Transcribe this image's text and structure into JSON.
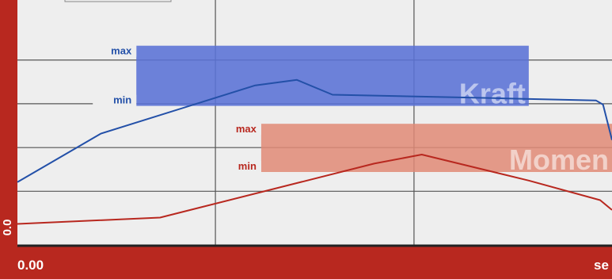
{
  "chart_data": {
    "type": "line",
    "x_axis": {
      "start_label": "0.00",
      "unit_label": "se"
    },
    "y_axis": {
      "visible_label": "0.0"
    },
    "grid": true,
    "series": [
      {
        "name": "Kraft",
        "color": "#2350a8",
        "x": [
          0,
          14,
          40,
          47,
          53,
          80,
          97.3,
          98.5,
          100
        ],
        "y": [
          5.9,
          37,
          68.1,
          71.6,
          62.1,
          59.9,
          58.4,
          55.7,
          33
        ]
      },
      {
        "name": "Moment",
        "color": "#b8281f",
        "x": [
          0,
          24,
          60,
          68,
          86,
          98,
          100
        ],
        "y": [
          -21,
          -16.9,
          17.8,
          23.6,
          6.9,
          -5.7,
          -12
        ]
      }
    ],
    "tolerance_bands": [
      {
        "series": "Kraft",
        "color": "#5a72d6",
        "x_range": [
          20,
          86
        ],
        "y_range": [
          54.9,
          93.6
        ],
        "max_label": "max",
        "min_label": "min",
        "band_label": "Kraft"
      },
      {
        "series": "Moment",
        "color": "#e08a76",
        "x_range": [
          41,
          100
        ],
        "y_range": [
          12.4,
          43.4
        ],
        "max_label": "max",
        "min_label": "min",
        "band_label": "Momen"
      }
    ],
    "xlim": [
      0,
      100
    ],
    "ylim": [
      -35,
      123
    ]
  }
}
